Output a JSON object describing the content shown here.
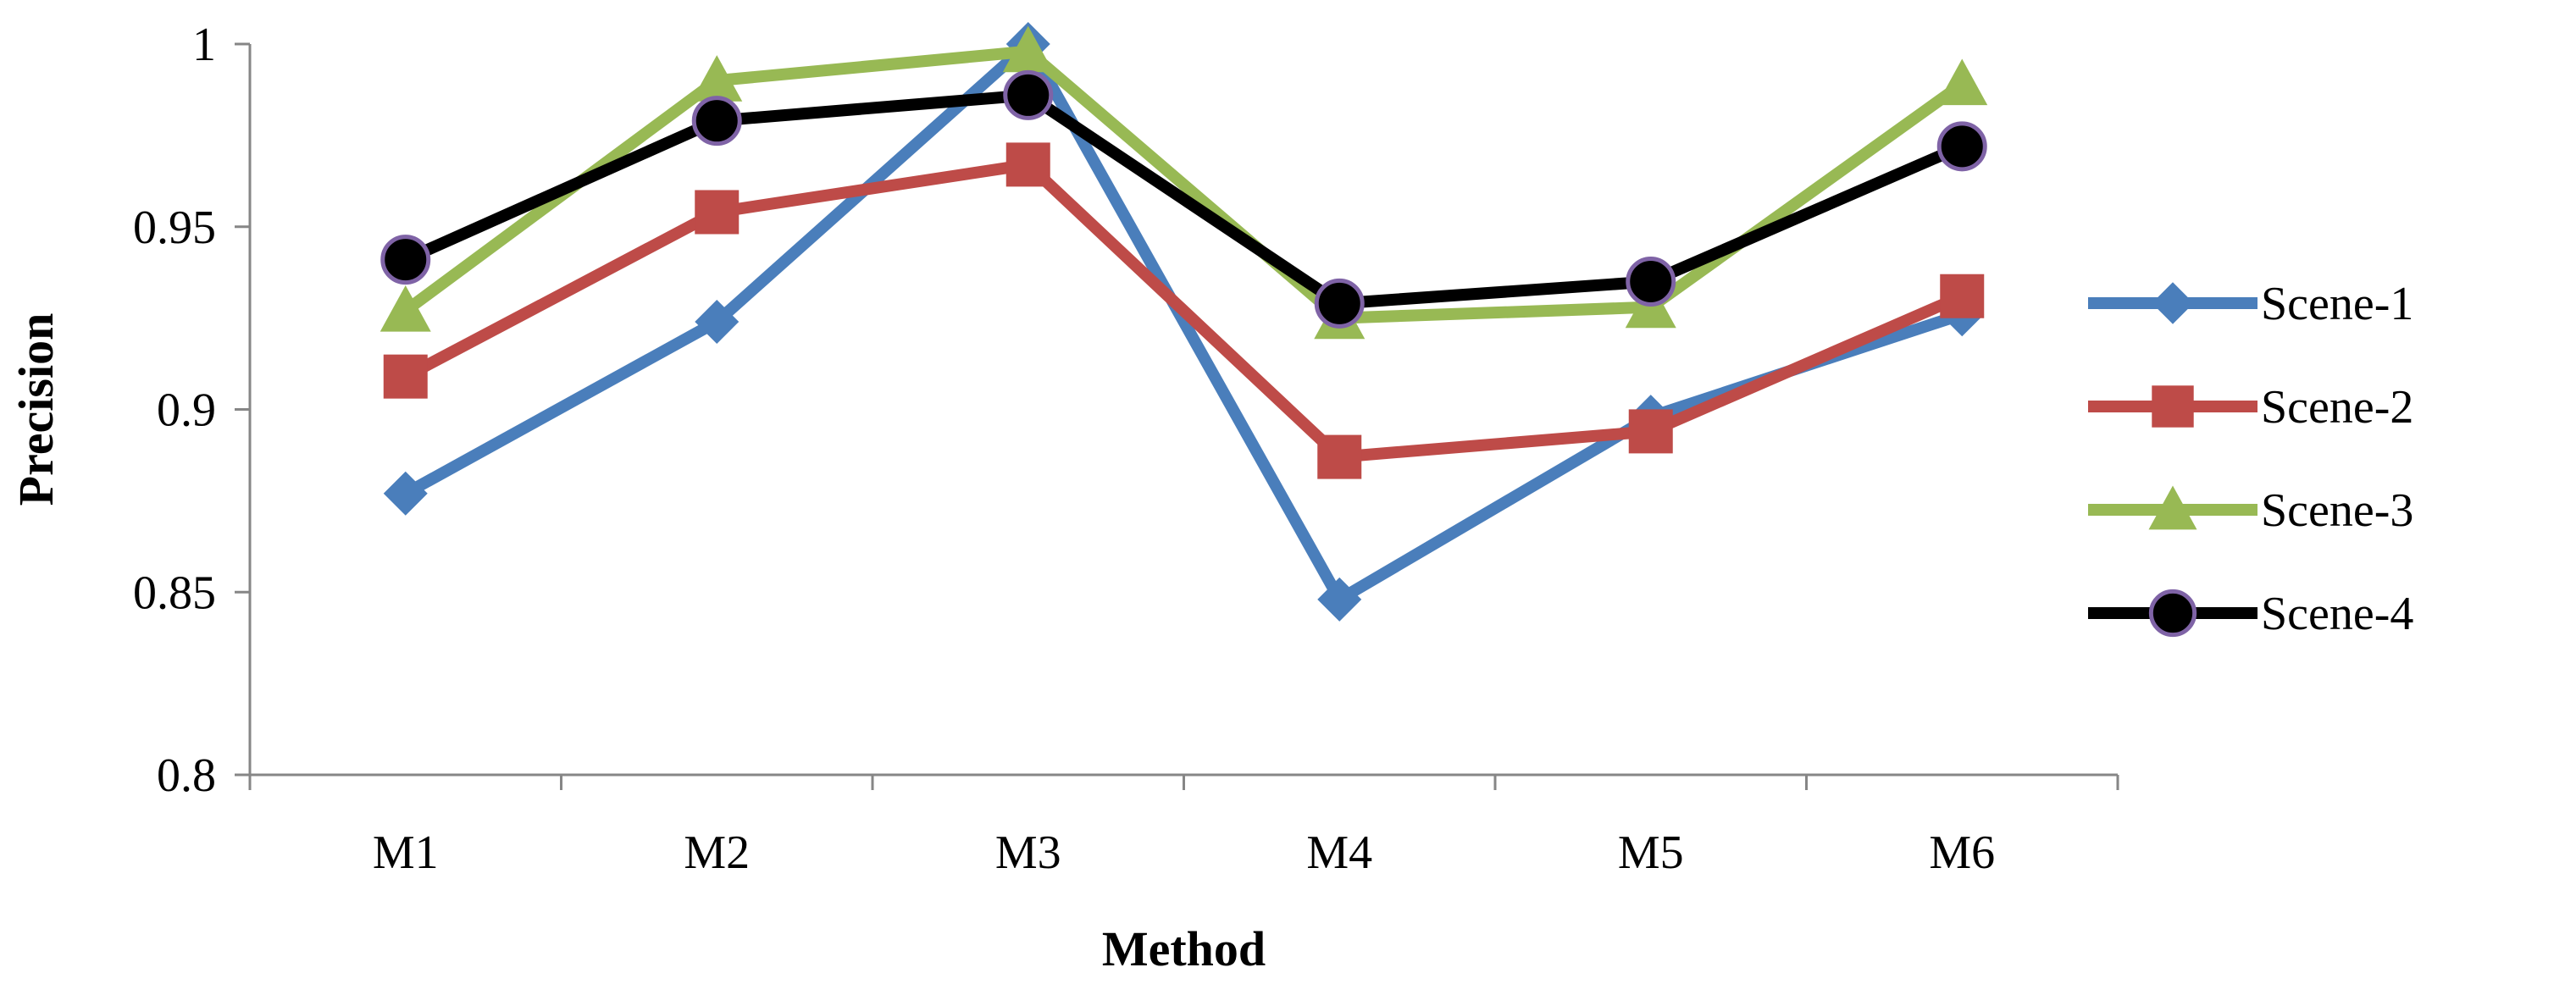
{
  "chart_data": {
    "type": "line",
    "xlabel": "Method",
    "ylabel": "Precision",
    "categories": [
      "M1",
      "M2",
      "M3",
      "M4",
      "M5",
      "M6"
    ],
    "ylim": [
      0.8,
      1.0
    ],
    "yticks": [
      0.8,
      0.85,
      0.9,
      0.95,
      1
    ],
    "ytick_labels": [
      "0.8",
      "0.85",
      "0.9",
      "0.95",
      "1"
    ],
    "grid": false,
    "legend_position": "right",
    "series": [
      {
        "name": "Scene-1",
        "values": [
          0.877,
          0.924,
          1.0,
          0.848,
          0.898,
          0.926
        ],
        "color": "#4A7EBB",
        "marker": "diamond"
      },
      {
        "name": "Scene-2",
        "values": [
          0.909,
          0.954,
          0.967,
          0.887,
          0.894,
          0.931
        ],
        "color": "#BE4B48",
        "marker": "square"
      },
      {
        "name": "Scene-3",
        "values": [
          0.927,
          0.99,
          0.998,
          0.925,
          0.928,
          0.989
        ],
        "color": "#98B954",
        "marker": "triangle"
      },
      {
        "name": "Scene-4",
        "values": [
          0.941,
          0.979,
          0.986,
          0.929,
          0.935,
          0.972
        ],
        "color": "#000000",
        "marker": "circle",
        "marker_edge": "#7F63A6"
      }
    ]
  }
}
